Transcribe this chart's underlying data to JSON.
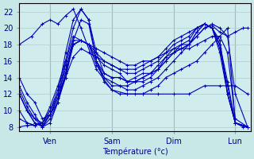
{
  "title": "",
  "ylabel": "",
  "bg_color": "#c8e8e8",
  "plot_bg_color": "#d0ecec",
  "line_color": "#0000bb",
  "grid_color": "#b0cccc",
  "ylim": [
    7.5,
    23
  ],
  "xlim": [
    0,
    150
  ],
  "yticks": [
    8,
    10,
    12,
    14,
    16,
    18,
    20,
    22
  ],
  "xtick_positions": [
    20,
    60,
    100,
    140
  ],
  "xtick_labels": [
    "Ven",
    "Sam",
    "Dim",
    "Lun"
  ],
  "lines": [
    {
      "x": [
        0,
        8,
        15,
        20,
        25,
        30,
        35,
        40,
        50,
        60,
        70,
        80,
        90,
        100,
        110,
        120,
        130,
        140,
        148
      ],
      "y": [
        18,
        19,
        20.5,
        21,
        20.5,
        21.5,
        22.3,
        20,
        15,
        12.5,
        12,
        12,
        12,
        12,
        12,
        13,
        13,
        13,
        12
      ]
    },
    {
      "x": [
        0,
        5,
        10,
        15,
        20,
        25,
        30,
        35,
        40,
        45,
        50,
        55,
        60,
        65,
        70,
        75,
        80,
        85,
        90,
        95,
        100,
        105,
        110,
        115,
        120,
        125,
        130,
        135,
        140,
        145,
        148
      ],
      "y": [
        14,
        12,
        11,
        9,
        9.5,
        12,
        17,
        21,
        22.3,
        21,
        17,
        14.5,
        14,
        14,
        13.5,
        14,
        14.5,
        14.5,
        15,
        16,
        17,
        18,
        18,
        19,
        20,
        20.5,
        20,
        19,
        19.5,
        20,
        20
      ]
    },
    {
      "x": [
        0,
        5,
        10,
        15,
        20,
        25,
        30,
        35,
        40,
        45,
        50,
        55,
        60,
        65,
        70,
        75,
        80,
        85,
        90,
        95,
        100,
        105,
        110,
        115,
        120,
        125,
        130,
        135,
        140,
        148
      ],
      "y": [
        13,
        11,
        9.5,
        8,
        8.5,
        11,
        16,
        20,
        22.3,
        21,
        16,
        14,
        13,
        13,
        13,
        13.5,
        13.5,
        14,
        15,
        16.5,
        17,
        17.5,
        18,
        19,
        20,
        20.3,
        19.5,
        19,
        12,
        8
      ]
    },
    {
      "x": [
        0,
        5,
        10,
        15,
        20,
        25,
        30,
        35,
        40,
        45,
        50,
        55,
        60,
        65,
        70,
        75,
        80,
        85,
        90,
        95,
        100,
        105,
        110,
        115,
        120,
        125,
        130,
        135,
        140,
        148
      ],
      "y": [
        12.5,
        10.5,
        9,
        8,
        9,
        11,
        14.5,
        18.5,
        21,
        20.5,
        16,
        13.5,
        12.5,
        12,
        12,
        12,
        12,
        12.5,
        13,
        14,
        14.5,
        15,
        15.5,
        16,
        17,
        18,
        19,
        20,
        8.5,
        8
      ]
    },
    {
      "x": [
        0,
        5,
        10,
        15,
        20,
        25,
        30,
        35,
        40,
        45,
        50,
        55,
        60,
        65,
        70,
        75,
        80,
        85,
        90,
        95,
        100,
        105,
        110,
        115,
        120,
        125,
        130,
        135,
        140,
        148
      ],
      "y": [
        12,
        10,
        8.5,
        8.2,
        9.5,
        11,
        14,
        18,
        18.5,
        18,
        15.5,
        14,
        13.5,
        13,
        12.5,
        12.5,
        13,
        13.5,
        14,
        15,
        16,
        17,
        18,
        19.5,
        20.5,
        20,
        18.5,
        12,
        8.5,
        8
      ]
    },
    {
      "x": [
        0,
        5,
        10,
        15,
        20,
        25,
        30,
        35,
        40,
        45,
        50,
        55,
        60,
        65,
        70,
        75,
        80,
        85,
        90,
        95,
        100,
        105,
        110,
        115,
        120,
        125,
        130,
        135,
        140,
        145,
        148
      ],
      "y": [
        12,
        10,
        8.5,
        8.0,
        9.5,
        11.5,
        14.5,
        18,
        18.5,
        18,
        16,
        14.5,
        14,
        14,
        13.5,
        13.5,
        14,
        14.5,
        15,
        16,
        17,
        17.5,
        18,
        19.5,
        20.5,
        20,
        18,
        12,
        8.5,
        8,
        8
      ]
    },
    {
      "x": [
        0,
        5,
        10,
        15,
        20,
        25,
        30,
        35,
        40,
        45,
        50,
        55,
        60,
        65,
        70,
        75,
        80,
        85,
        90,
        95,
        100,
        105,
        110,
        115,
        120,
        125,
        130,
        135,
        140,
        148
      ],
      "y": [
        12,
        10,
        9,
        8.5,
        10,
        12,
        15,
        18,
        18.5,
        18,
        16.5,
        15.5,
        15,
        14.5,
        13.5,
        13.5,
        14,
        14.5,
        15.5,
        16.5,
        17.5,
        18,
        18.5,
        20,
        20.5,
        20,
        17,
        12,
        8.5,
        8
      ]
    },
    {
      "x": [
        0,
        5,
        10,
        15,
        20,
        25,
        30,
        35,
        40,
        45,
        50,
        55,
        60,
        65,
        70,
        75,
        80,
        85,
        90,
        95,
        100,
        105,
        110,
        115,
        120,
        125,
        130,
        135,
        140,
        148
      ],
      "y": [
        10,
        8.5,
        8.2,
        8.5,
        10,
        12.5,
        15.5,
        18.5,
        18.5,
        18,
        17,
        16,
        15.5,
        15,
        14.5,
        14.5,
        15,
        15.5,
        16,
        17,
        18,
        18.5,
        19,
        20,
        20.5,
        20,
        17.5,
        13,
        8.5,
        8
      ]
    },
    {
      "x": [
        0,
        5,
        10,
        15,
        20,
        25,
        30,
        35,
        40,
        45,
        50,
        55,
        60,
        65,
        70,
        75,
        80,
        85,
        90,
        95,
        100,
        105,
        110,
        115,
        120,
        125,
        130,
        135,
        140,
        148
      ],
      "y": [
        9,
        8.5,
        8.2,
        8.5,
        10.5,
        13,
        16,
        19,
        18.5,
        18,
        17.5,
        17,
        16.5,
        16,
        15.5,
        15.5,
        16,
        16,
        16.5,
        17.5,
        18.5,
        19,
        19.5,
        20,
        20.5,
        20,
        18,
        13.5,
        8.5,
        8
      ]
    },
    {
      "x": [
        0,
        5,
        10,
        15,
        20,
        25,
        30,
        35,
        40,
        45,
        50,
        55,
        60,
        65,
        70,
        75,
        80,
        85,
        90,
        95,
        100,
        105,
        110,
        115,
        120,
        125,
        130,
        135,
        140,
        148
      ],
      "y": [
        8,
        8.2,
        8.2,
        8.5,
        9.5,
        11.5,
        14,
        16.5,
        17.5,
        17,
        16.5,
        16,
        15.5,
        15,
        15,
        15,
        15.5,
        16,
        16.5,
        17,
        17.5,
        17.5,
        17.5,
        18,
        18.5,
        19,
        19,
        17,
        9,
        8
      ]
    }
  ]
}
